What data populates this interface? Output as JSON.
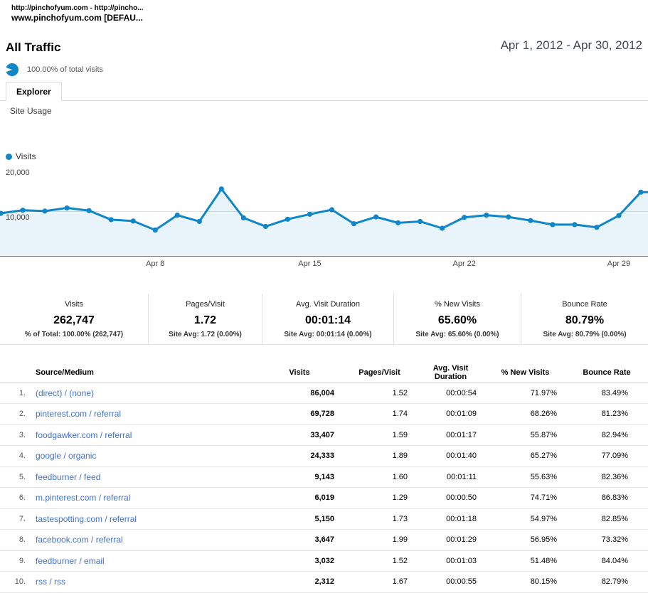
{
  "window": {
    "title_line1": "http://pinchofyum.com - http://pincho...",
    "title_line2": "www.pinchofyum.com [DEFAU..."
  },
  "header": {
    "title": "All Traffic",
    "date_range": "Apr 1, 2012 - Apr 30, 2012",
    "share_of_visits": "100.00% of total visits"
  },
  "tabs": {
    "explorer_label": "Explorer",
    "subtab_label": "Site Usage"
  },
  "colors": {
    "accent_blue": "#0e86c7",
    "link_blue": "#4272c8"
  },
  "chart_data": {
    "type": "line",
    "series_name": "Visits",
    "x_unit": "day of April 2012",
    "x": [
      1,
      2,
      3,
      4,
      5,
      6,
      7,
      8,
      9,
      10,
      11,
      12,
      13,
      14,
      15,
      16,
      17,
      18,
      19,
      20,
      21,
      22,
      23,
      24,
      25,
      26,
      27,
      28,
      29,
      30
    ],
    "values": [
      9600,
      10300,
      10100,
      10800,
      10200,
      8200,
      7900,
      5900,
      9200,
      7800,
      15000,
      8600,
      6700,
      8300,
      9400,
      10400,
      7300,
      8800,
      7500,
      7800,
      6300,
      8700,
      9200,
      8800,
      8000,
      7100,
      7100,
      6500,
      9100,
      14300
    ],
    "ylim": [
      0,
      20000
    ],
    "y_tick_labels": [
      "20,000",
      "10,000"
    ],
    "x_tick_labels": [
      "Apr 8",
      "Apr 15",
      "Apr 22",
      "Apr 29"
    ],
    "x_tick_days": [
      8,
      15,
      22,
      29
    ],
    "grid": "horizontal line at 10,000",
    "legend_position": "top-left",
    "line_color": "#0e86c7",
    "fill_color": "rgba(14,134,199,0.09)"
  },
  "metrics": [
    {
      "label": "Visits",
      "value": "262,747",
      "sub": "% of Total: 100.00% (262,747)"
    },
    {
      "label": "Pages/Visit",
      "value": "1.72",
      "sub": "Site Avg: 1.72 (0.00%)"
    },
    {
      "label": "Avg. Visit Duration",
      "value": "00:01:14",
      "sub": "Site Avg: 00:01:14 (0.00%)"
    },
    {
      "label": "% New Visits",
      "value": "65.60%",
      "sub": "Site Avg: 65.60% (0.00%)"
    },
    {
      "label": "Bounce Rate",
      "value": "80.79%",
      "sub": "Site Avg: 80.79% (0.00%)"
    }
  ],
  "table": {
    "columns": [
      "Source/Medium",
      "Visits",
      "Pages/Visit",
      "Avg. Visit Duration",
      "% New Visits",
      "Bounce Rate"
    ],
    "rows": [
      {
        "rank": "1.",
        "source": "(direct) / (none)",
        "visits": "86,004",
        "pages_visit": "1.52",
        "avg_duration": "00:00:54",
        "new_visits": "71.97%",
        "bounce_rate": "83.49%"
      },
      {
        "rank": "2.",
        "source": "pinterest.com / referral",
        "visits": "69,728",
        "pages_visit": "1.74",
        "avg_duration": "00:01:09",
        "new_visits": "68.26%",
        "bounce_rate": "81.23%"
      },
      {
        "rank": "3.",
        "source": "foodgawker.com / referral",
        "visits": "33,407",
        "pages_visit": "1.59",
        "avg_duration": "00:01:17",
        "new_visits": "55.87%",
        "bounce_rate": "82.94%"
      },
      {
        "rank": "4.",
        "source": "google / organic",
        "visits": "24,333",
        "pages_visit": "1.89",
        "avg_duration": "00:01:40",
        "new_visits": "65.27%",
        "bounce_rate": "77.09%"
      },
      {
        "rank": "5.",
        "source": "feedburner / feed",
        "visits": "9,143",
        "pages_visit": "1.60",
        "avg_duration": "00:01:11",
        "new_visits": "55.63%",
        "bounce_rate": "82.36%"
      },
      {
        "rank": "6.",
        "source": "m.pinterest.com / referral",
        "visits": "6,019",
        "pages_visit": "1.29",
        "avg_duration": "00:00:50",
        "new_visits": "74.71%",
        "bounce_rate": "86.83%"
      },
      {
        "rank": "7.",
        "source": "tastespotting.com / referral",
        "visits": "5,150",
        "pages_visit": "1.73",
        "avg_duration": "00:01:18",
        "new_visits": "54.97%",
        "bounce_rate": "82.85%"
      },
      {
        "rank": "8.",
        "source": "facebook.com / referral",
        "visits": "3,647",
        "pages_visit": "1.99",
        "avg_duration": "00:01:29",
        "new_visits": "56.95%",
        "bounce_rate": "73.32%"
      },
      {
        "rank": "9.",
        "source": "feedburner / email",
        "visits": "3,032",
        "pages_visit": "1.52",
        "avg_duration": "00:01:03",
        "new_visits": "51.48%",
        "bounce_rate": "84.04%"
      },
      {
        "rank": "10.",
        "source": "rss / rss",
        "visits": "2,312",
        "pages_visit": "1.67",
        "avg_duration": "00:00:55",
        "new_visits": "80.15%",
        "bounce_rate": "82.79%"
      }
    ]
  }
}
